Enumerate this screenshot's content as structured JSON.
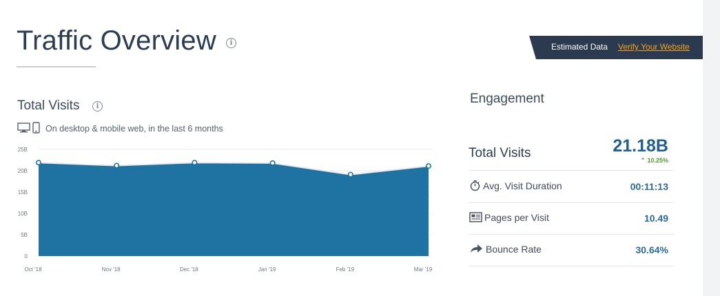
{
  "header": {
    "title": "Traffic Overview",
    "estimated_label": "Estimated Data",
    "verify_link": "Verify Your Website"
  },
  "total_visits_section": {
    "title": "Total Visits",
    "subtitle": "On desktop & mobile web, in the last 6 months",
    "icons": [
      "desktop-icon",
      "mobile-icon"
    ]
  },
  "chart_data": {
    "type": "area",
    "x": [
      "Oct '18",
      "Nov '18",
      "Dec '18",
      "Jan '19",
      "Feb '19",
      "Mar '19"
    ],
    "y_ticks": [
      "0",
      "5B",
      "10B",
      "15B",
      "20B",
      "25B"
    ],
    "ylim": [
      0,
      25
    ],
    "unit": "B",
    "grid": true,
    "series": [
      {
        "values": [
          21.9,
          21.2,
          21.9,
          21.8,
          19.1,
          21.1
        ]
      }
    ],
    "colors": {
      "fill": "#1e73a3",
      "line": "#e8ecf0",
      "point": "#1e73a3"
    }
  },
  "engagement": {
    "title": "Engagement",
    "total_visits": {
      "label": "Total Visits",
      "value": "21.18B",
      "change": "10.25%",
      "direction": "up"
    },
    "metrics": [
      {
        "icon": "stopwatch-icon",
        "label": "Avg. Visit Duration",
        "value": "00:11:13"
      },
      {
        "icon": "pages-icon",
        "label": "Pages per Visit",
        "value": "10.49"
      },
      {
        "icon": "share-arrow-icon",
        "label": "Bounce Rate",
        "value": "30.64%"
      }
    ]
  },
  "colors": {
    "accent": "#1e73a3",
    "banner": "#2b3a4e",
    "link": "#f6a623",
    "positive": "#4d9a2c"
  }
}
